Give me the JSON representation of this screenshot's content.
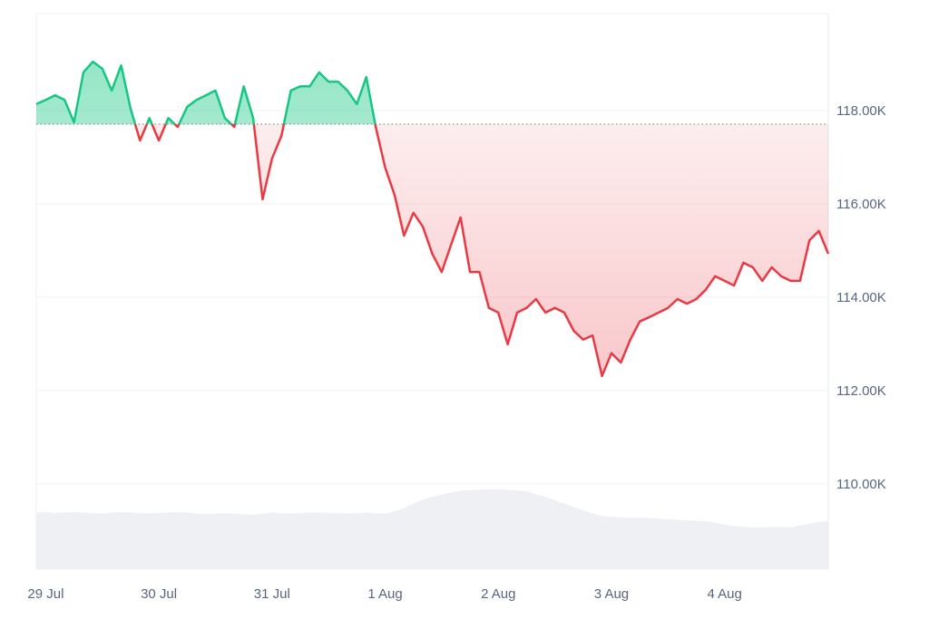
{
  "chart_data": {
    "type": "line",
    "categories": [
      null,
      "29 Jul",
      null,
      null,
      null,
      null,
      null,
      null,
      null,
      null,
      null,
      null,
      null,
      "30 Jul",
      null,
      null,
      null,
      null,
      null,
      null,
      null,
      null,
      null,
      null,
      null,
      "31 Jul",
      null,
      null,
      null,
      null,
      null,
      null,
      null,
      null,
      null,
      null,
      null,
      "1 Aug",
      null,
      null,
      null,
      null,
      null,
      null,
      null,
      null,
      null,
      null,
      null,
      "2 Aug",
      null,
      null,
      null,
      null,
      null,
      null,
      null,
      null,
      null,
      null,
      null,
      "3 Aug",
      null,
      null,
      null,
      null,
      null,
      null,
      null,
      null,
      null,
      null,
      null,
      "4 Aug",
      null,
      null,
      null,
      null,
      null,
      null,
      null,
      null,
      null,
      null,
      null
    ],
    "values": [
      118140,
      118230,
      118330,
      118230,
      117750,
      118820,
      119050,
      118900,
      118430,
      118970,
      118040,
      117360,
      117840,
      117360,
      117840,
      117650,
      118080,
      118230,
      118330,
      118430,
      117840,
      117650,
      118520,
      117840,
      116100,
      116970,
      117460,
      118430,
      118520,
      118520,
      118820,
      118620,
      118620,
      118430,
      118140,
      118720,
      117650,
      116780,
      116190,
      115320,
      115810,
      115510,
      114930,
      114540,
      115130,
      115710,
      114540,
      114540,
      113770,
      113670,
      112990,
      113670,
      113770,
      113960,
      113670,
      113770,
      113670,
      113280,
      113090,
      113180,
      112310,
      112800,
      112600,
      113090,
      113480,
      113570,
      113670,
      113770,
      113960,
      113860,
      113960,
      114160,
      114450,
      114350,
      114250,
      114740,
      114640,
      114350,
      114640,
      114450,
      114350,
      114350,
      115220,
      115420,
      114930
    ],
    "baseline": 117710,
    "up_color": "#16c784",
    "down_color": "#ea3943",
    "volume": {
      "color": "#eef0f3",
      "values": [
        10.2,
        10.3,
        10.1,
        10.2,
        10.3,
        10.2,
        10.1,
        10.0,
        10.2,
        10.3,
        10.2,
        10.1,
        10.0,
        10.1,
        10.2,
        10.3,
        10.2,
        10.0,
        9.9,
        10.0,
        10.1,
        10.0,
        9.9,
        9.8,
        10.0,
        10.2,
        10.1,
        10.0,
        10.1,
        10.2,
        10.2,
        10.1,
        10.1,
        10.0,
        10.1,
        10.2,
        10.1,
        10.0,
        10.4,
        11.0,
        11.8,
        12.5,
        13.0,
        13.4,
        13.8,
        14.1,
        14.2,
        14.3,
        14.4,
        14.4,
        14.3,
        14.2,
        14.0,
        13.5,
        13.0,
        12.4,
        11.8,
        11.2,
        10.6,
        10.0,
        9.6,
        9.4,
        9.3,
        9.2,
        9.3,
        9.2,
        9.1,
        9.0,
        8.9,
        8.8,
        8.7,
        8.6,
        8.4,
        8.0,
        7.8,
        7.6,
        7.5,
        7.5,
        7.6,
        7.6,
        7.5,
        7.9,
        8.2,
        8.5,
        8.6
      ]
    },
    "y2lim": [
      0,
      100
    ],
    "ylim": [
      108170,
      120080
    ],
    "yticks": [
      {
        "value": 110000,
        "label": "110.00K"
      },
      {
        "value": 112000,
        "label": "112.00K"
      },
      {
        "value": 114000,
        "label": "114.00K"
      },
      {
        "value": 116000,
        "label": "116.00K"
      },
      {
        "value": 118000,
        "label": "118.00K"
      }
    ],
    "grid": true
  }
}
